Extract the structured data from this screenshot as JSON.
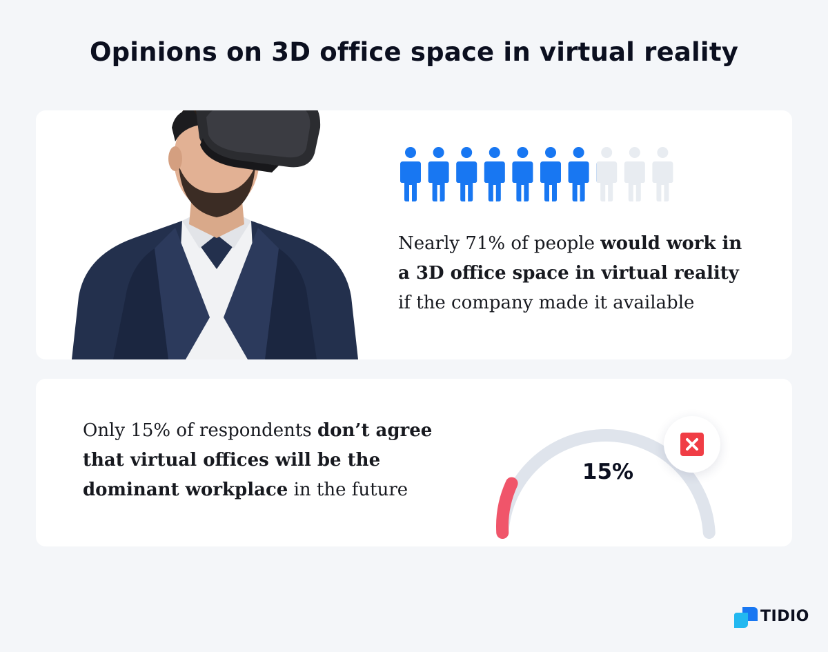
{
  "title": "Opinions on 3D office space in virtual reality",
  "card1": {
    "stat": {
      "prefix": "Nearly 71% of people ",
      "bold": "would work in a 3D office space in virtual reality",
      "suffix": " if the company made it available"
    },
    "icon_fill_fraction": 0.71,
    "icon_count": 10,
    "colors": {
      "filled": "#1877f2",
      "empty": "#e8ecf1"
    }
  },
  "card2": {
    "stat": {
      "prefix": "Only 15% of respondents ",
      "bold": "don’t agree that virtual offices will be the dominant workplace",
      "suffix": " in the future"
    },
    "gauge_value_label": "15%",
    "gauge_fraction": 0.15,
    "colors": {
      "track": "#dfe4ec",
      "value": "#f0556a",
      "x_icon": "#f03d45"
    }
  },
  "brand": {
    "name": "TIDIO",
    "color": "#1877f2"
  }
}
